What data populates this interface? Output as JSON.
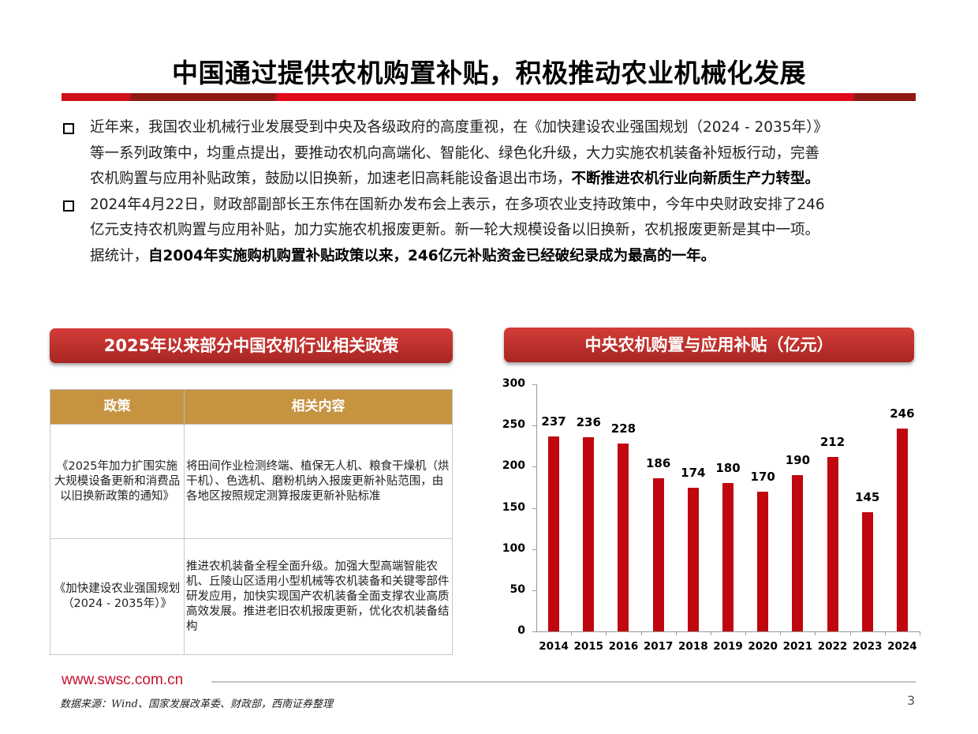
{
  "header": {
    "title": "中国通过提供农机购置补贴，积极推动农业机械化发展"
  },
  "bullets": [
    {
      "lines": [
        {
          "text": "近年来，我国农业机械行业发展受到中央及各级政府的高度重视，在《加快建设农业强国规划（2024 - 2035年）》",
          "bold": ""
        },
        {
          "text": "等一系列政策中，均重点提出，要推动农机向高端化、智能化、绿色化升级，大力实施农机装备补短板行动，完善",
          "bold": ""
        },
        {
          "text": "农机购置与应用补贴政策，鼓励以旧换新，加速老旧高耗能设备退出市场，",
          "bold": "不断推进农机行业向新质生产力转型。"
        }
      ]
    },
    {
      "lines": [
        {
          "text": "2024年4月22日，财政部副部长王东伟在国新办发布会上表示，在多项农业支持政策中，今年中央财政安排了246",
          "bold": ""
        },
        {
          "text": "亿元支持农机购置与应用补贴，加力实施农机报废更新。新一轮大规模设备以旧换新，农机报废更新是其中一项。",
          "bold": ""
        },
        {
          "text": "据统计，",
          "bold": "自2004年实施购机购置补贴政策以来，246亿元补贴资金已经破纪录成为最高的一年。"
        }
      ]
    }
  ],
  "policy_section": {
    "title": "2025年以来部分中国农机行业相关政策",
    "table": {
      "headers": [
        "政策",
        "相关内容"
      ],
      "rows": [
        {
          "policy": "《2025年加力扩围实施大规模设备更新和消费品以旧换新政策的通知》",
          "content": "将田间作业检测终端、植保无人机、粮食干燥机（烘干机）、色选机、磨粉机纳入报废更新补贴范围，由各地区按照规定测算报废更新补贴标准"
        },
        {
          "policy": "《加快建设农业强国规划（2024 - 2035年）》",
          "content": "推进农机装备全程全面升级。加强大型高端智能农机、丘陵山区适用小型机械等农机装备和关键零部件研发应用，加快实现国产农机装备全面支撑农业高质高效发展。推进老旧农机报废更新，优化农机装备结构"
        }
      ]
    }
  },
  "chart_section": {
    "title": "中央农机购置与应用补贴（亿元）"
  },
  "chart_data": {
    "type": "bar",
    "title": "中央农机购置与应用补贴（亿元）",
    "categories": [
      "2014",
      "2015",
      "2016",
      "2017",
      "2018",
      "2019",
      "2020",
      "2021",
      "2022",
      "2023",
      "2024"
    ],
    "values": [
      237,
      236,
      228,
      186,
      174,
      180,
      170,
      190,
      212,
      145,
      246
    ],
    "xlabel": "",
    "ylabel": "亿元",
    "ylim": [
      0,
      300
    ],
    "yticks": [
      0,
      50,
      100,
      150,
      200,
      250,
      300
    ],
    "grid": false,
    "legend": null,
    "data_labels": true,
    "bar_color": "#c0060f"
  },
  "footer": {
    "url": "www.swsc.com.cn",
    "source": "数据来源：Wind、国家发展改革委、财政部，西南证券整理",
    "page": "3"
  },
  "colors": {
    "brand_red": "#c8102e",
    "bar_red": "#c0060f",
    "table_header": "#c69340",
    "pill_red": "#b8302c"
  }
}
